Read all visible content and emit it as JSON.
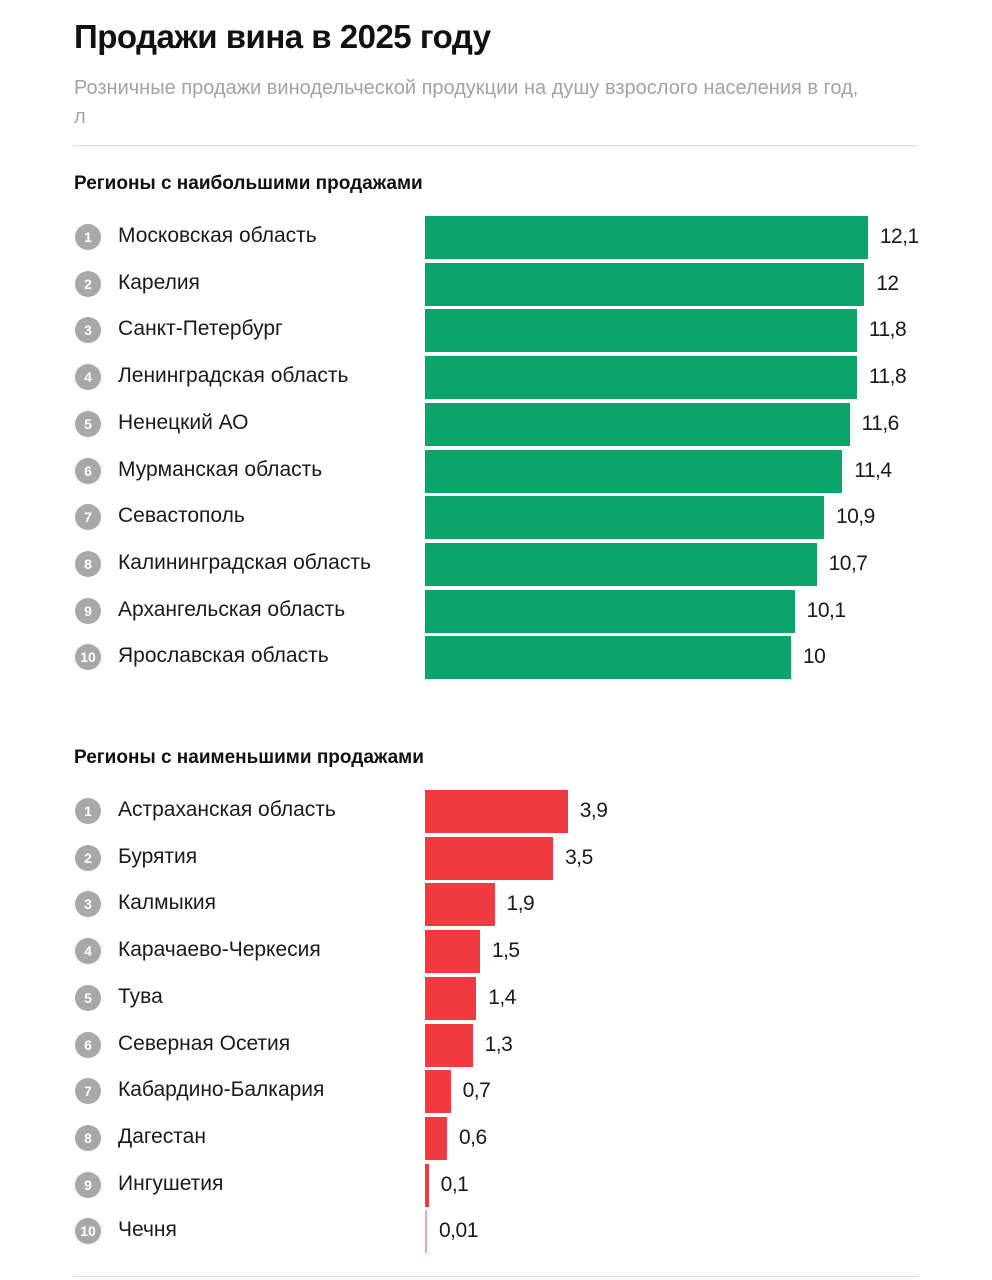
{
  "title": "Продажи вина в 2025 году",
  "subtitle": "Розничные продажи винодельческой продукции на душу взрослого населения в год, л",
  "colors": {
    "top": "#0ba56a",
    "bottom": "#f23b40",
    "badge": "#a8a8a8"
  },
  "chart_data": [
    {
      "type": "bar",
      "orientation": "horizontal",
      "title": "Регионы с наибольшими продажами",
      "categories": [
        "Московская область",
        "Карелия",
        "Санкт-Петербург",
        "Ленинградская область",
        "Ненецкий АО",
        "Мурманская область",
        "Севастополь",
        "Калининградская область",
        "Архангельская область",
        "Ярославская область"
      ],
      "values": [
        12.1,
        12,
        11.8,
        11.8,
        11.6,
        11.4,
        10.9,
        10.7,
        10.1,
        10
      ],
      "value_labels": [
        "12,1",
        "12",
        "11,8",
        "11,8",
        "11,6",
        "11,4",
        "10,9",
        "10,7",
        "10,1",
        "10"
      ],
      "color": "#0ba56a"
    },
    {
      "type": "bar",
      "orientation": "horizontal",
      "title": "Регионы с наименьшими продажами",
      "categories": [
        "Астраханская область",
        "Бурятия",
        "Калмыкия",
        "Карачаево-Черкесия",
        "Тува",
        "Северная Осетия",
        "Кабардино-Балкария",
        "Дагестан",
        "Ингушетия",
        "Чечня"
      ],
      "values": [
        3.9,
        3.5,
        1.9,
        1.5,
        1.4,
        1.3,
        0.7,
        0.6,
        0.1,
        0.01
      ],
      "value_labels": [
        "3,9",
        "3,5",
        "1,9",
        "1,5",
        "1,4",
        "1,3",
        "0,7",
        "0,6",
        "0,1",
        "0,01"
      ],
      "color": "#f23b40"
    }
  ]
}
